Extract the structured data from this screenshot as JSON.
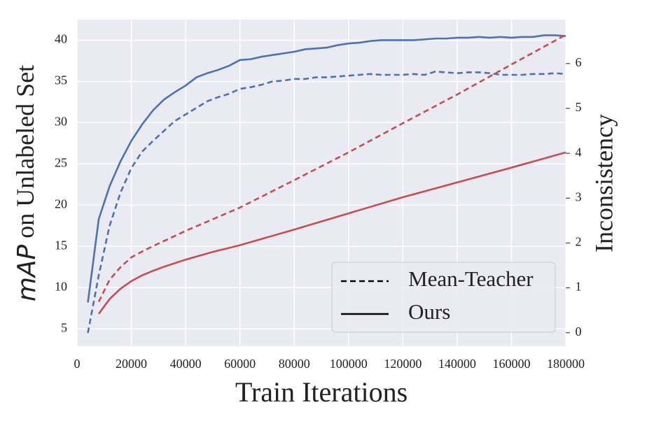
{
  "chart_data": {
    "type": "line",
    "xlabel": "Train Iterations",
    "ylabel": {
      "italic": "mAP",
      "text": "on Unlabeled Set"
    },
    "y2label": "Inconsistency",
    "xlim": [
      0,
      180000
    ],
    "xticks": [
      0,
      20000,
      40000,
      60000,
      80000,
      100000,
      120000,
      140000,
      160000,
      180000
    ],
    "ylim": [
      2.9,
      42.5
    ],
    "yticks": [
      5,
      10,
      15,
      20,
      25,
      30,
      35,
      40
    ],
    "y2lim": [
      -0.3,
      6.98
    ],
    "y2ticks": [
      0,
      1,
      2,
      3,
      4,
      5,
      6
    ],
    "grid": true,
    "ylabel_color": "#4c72b0",
    "y2label_color": "#c44e52",
    "legend_position": "lower right",
    "legend": [
      {
        "name": "Mean-Teacher",
        "dash": true
      },
      {
        "name": "Ours",
        "dash": false
      }
    ],
    "series": [
      {
        "color": "#4c72b0",
        "dash": false,
        "axis": "y",
        "x": [
          4000,
          8000,
          12000,
          16000,
          20000,
          24000,
          28000,
          32000,
          36000,
          40000,
          44000,
          48000,
          52000,
          56000,
          60000,
          64000,
          68000,
          72000,
          76000,
          80000,
          84000,
          88000,
          92000,
          96000,
          100000,
          104000,
          108000,
          112000,
          116000,
          120000,
          124000,
          128000,
          132000,
          136000,
          140000,
          144000,
          148000,
          152000,
          156000,
          160000,
          164000,
          168000,
          172000,
          176000,
          180000
        ],
        "values": [
          8.2,
          18.3,
          22.3,
          25.3,
          27.8,
          29.8,
          31.5,
          32.8,
          33.7,
          34.5,
          35.5,
          36.0,
          36.4,
          36.9,
          37.6,
          37.7,
          38.0,
          38.2,
          38.4,
          38.6,
          38.9,
          39.0,
          39.1,
          39.4,
          39.6,
          39.7,
          39.9,
          40.0,
          40.0,
          40.0,
          40.0,
          40.1,
          40.2,
          40.2,
          40.3,
          40.3,
          40.4,
          40.3,
          40.4,
          40.3,
          40.4,
          40.4,
          40.6,
          40.6,
          40.5
        ]
      },
      {
        "color": "#4c72b0",
        "dash": true,
        "axis": "y",
        "x": [
          4000,
          8000,
          12000,
          16000,
          20000,
          24000,
          28000,
          32000,
          36000,
          40000,
          44000,
          48000,
          52000,
          56000,
          60000,
          64000,
          68000,
          72000,
          76000,
          80000,
          84000,
          88000,
          92000,
          96000,
          100000,
          104000,
          108000,
          112000,
          116000,
          120000,
          124000,
          128000,
          132000,
          136000,
          140000,
          144000,
          148000,
          152000,
          156000,
          160000,
          164000,
          168000,
          172000,
          176000,
          180000
        ],
        "values": [
          4.5,
          11.5,
          17.5,
          21.5,
          24.5,
          26.5,
          27.8,
          29.0,
          30.2,
          31.0,
          31.8,
          32.6,
          33.1,
          33.5,
          34.1,
          34.3,
          34.6,
          35.0,
          35.1,
          35.3,
          35.3,
          35.5,
          35.5,
          35.6,
          35.7,
          35.8,
          35.9,
          35.8,
          35.8,
          35.8,
          35.9,
          35.8,
          36.2,
          36.1,
          36.0,
          36.1,
          36.1,
          36.0,
          35.8,
          35.8,
          35.8,
          35.9,
          35.9,
          36.0,
          35.9
        ]
      },
      {
        "color": "#c44e52",
        "dash": false,
        "axis": "y2",
        "x": [
          8000,
          12000,
          16000,
          20000,
          24000,
          28000,
          32000,
          36000,
          40000,
          50000,
          60000,
          80000,
          100000,
          120000,
          140000,
          160000,
          180000
        ],
        "values": [
          0.42,
          0.75,
          0.98,
          1.15,
          1.28,
          1.38,
          1.47,
          1.55,
          1.63,
          1.8,
          1.95,
          2.3,
          2.66,
          3.02,
          3.35,
          3.68,
          4.02
        ]
      },
      {
        "color": "#c44e52",
        "dash": true,
        "axis": "y2",
        "x": [
          8000,
          12000,
          16000,
          20000,
          24000,
          28000,
          40000,
          60000,
          80000,
          100000,
          120000,
          140000,
          160000,
          180000
        ],
        "values": [
          0.69,
          1.18,
          1.46,
          1.68,
          1.81,
          1.93,
          2.27,
          2.79,
          3.4,
          4.02,
          4.67,
          5.31,
          5.98,
          6.64
        ]
      }
    ]
  }
}
